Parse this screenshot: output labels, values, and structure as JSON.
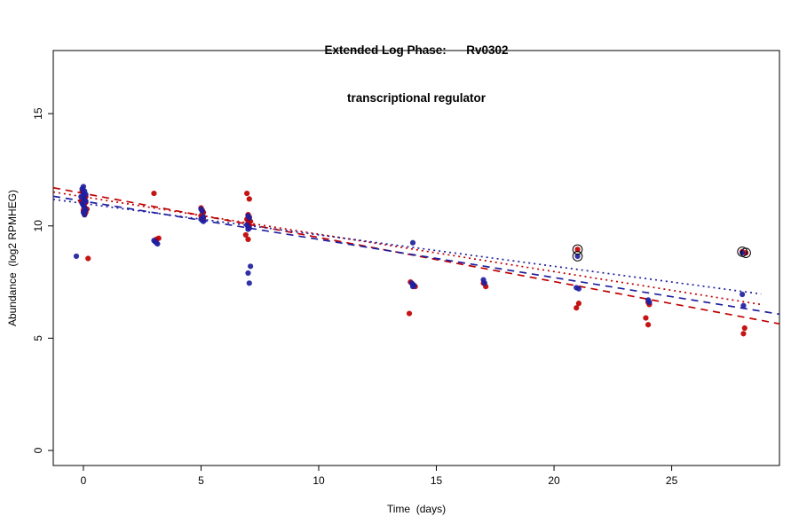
{
  "title": {
    "line1": "Extended Log Phase:      Rv0302",
    "line2": "transcriptional regulator"
  },
  "chart_data": {
    "type": "scatter",
    "title": "Extended Log Phase: Rv0302 transcriptional regulator",
    "xlabel": "Time  (days)",
    "ylabel": "Abundance  (log2 RPMHEG)",
    "xticks": [
      0,
      5,
      10,
      15,
      20,
      25
    ],
    "yticks": [
      0,
      5,
      10,
      15
    ],
    "xlim": [
      -1.28,
      29.58
    ],
    "ylim": [
      -0.67,
      17.81
    ],
    "grid": false,
    "legend": "none",
    "colors": {
      "red": "#c00000",
      "blue": "#1f1fa0",
      "ring": "#000000"
    },
    "series": [
      {
        "name": "red-points",
        "color": "#c00000",
        "points": [
          [
            -0.05,
            11.55
          ],
          [
            0,
            11.45
          ],
          [
            0.1,
            11.3
          ],
          [
            0.05,
            11.2
          ],
          [
            -0.1,
            11.1
          ],
          [
            0.1,
            11.05
          ],
          [
            0,
            10.95
          ],
          [
            0.05,
            10.85
          ],
          [
            0.15,
            10.75
          ],
          [
            0,
            10.7
          ],
          [
            0.1,
            10.6
          ],
          [
            0.05,
            10.5
          ],
          [
            0.2,
            8.55
          ],
          [
            3,
            11.45
          ],
          [
            3.2,
            9.45
          ],
          [
            3.1,
            9.4
          ],
          [
            5,
            10.8
          ],
          [
            5.05,
            10.7
          ],
          [
            5.1,
            10.6
          ],
          [
            5,
            10.45
          ],
          [
            5.05,
            10.35
          ],
          [
            5.1,
            10.3
          ],
          [
            6.95,
            11.45
          ],
          [
            7.05,
            11.2
          ],
          [
            7,
            10.5
          ],
          [
            7.05,
            10.4
          ],
          [
            6.95,
            10.3
          ],
          [
            7,
            10.25
          ],
          [
            7.1,
            10.2
          ],
          [
            7,
            10.1
          ],
          [
            7.05,
            10.0
          ],
          [
            6.9,
            9.6
          ],
          [
            7,
            9.4
          ],
          [
            13.9,
            7.5
          ],
          [
            14,
            7.4
          ],
          [
            14.1,
            7.3
          ],
          [
            13.85,
            6.1
          ],
          [
            17,
            7.45
          ],
          [
            17.1,
            7.3
          ],
          [
            21,
            8.95
          ],
          [
            21.05,
            6.55
          ],
          [
            20.95,
            6.35
          ],
          [
            24,
            6.6
          ],
          [
            24.05,
            6.5
          ],
          [
            23.9,
            5.9
          ],
          [
            24,
            5.6
          ],
          [
            28,
            8.85
          ],
          [
            28.15,
            8.8
          ],
          [
            28.1,
            5.45
          ],
          [
            28.05,
            5.2
          ]
        ]
      },
      {
        "name": "blue-points",
        "color": "#1f1fa0",
        "points": [
          [
            0,
            11.75
          ],
          [
            -0.05,
            11.65
          ],
          [
            0.05,
            11.55
          ],
          [
            0,
            11.45
          ],
          [
            0.1,
            11.4
          ],
          [
            -0.1,
            11.3
          ],
          [
            0,
            11.25
          ],
          [
            0.05,
            11.15
          ],
          [
            0.1,
            11.1
          ],
          [
            -0.05,
            11.0
          ],
          [
            0,
            10.9
          ],
          [
            0.05,
            10.8
          ],
          [
            0.1,
            10.7
          ],
          [
            0,
            10.6
          ],
          [
            0.05,
            10.5
          ],
          [
            -0.3,
            8.65
          ],
          [
            3,
            9.35
          ],
          [
            3.05,
            9.3
          ],
          [
            3.1,
            9.25
          ],
          [
            3.15,
            9.2
          ],
          [
            5,
            10.75
          ],
          [
            5.05,
            10.65
          ],
          [
            5.1,
            10.4
          ],
          [
            5,
            10.3
          ],
          [
            5.05,
            10.25
          ],
          [
            5.1,
            10.2
          ],
          [
            7,
            10.45
          ],
          [
            7.05,
            10.35
          ],
          [
            6.95,
            10.05
          ],
          [
            7,
            9.95
          ],
          [
            7.05,
            9.9
          ],
          [
            7,
            9.85
          ],
          [
            7.1,
            8.2
          ],
          [
            7,
            7.9
          ],
          [
            7.05,
            7.45
          ],
          [
            14,
            9.25
          ],
          [
            13.95,
            7.45
          ],
          [
            14.05,
            7.35
          ],
          [
            14,
            7.3
          ],
          [
            17,
            7.6
          ],
          [
            17.05,
            7.45
          ],
          [
            21,
            8.65
          ],
          [
            20.95,
            7.25
          ],
          [
            21.05,
            7.2
          ],
          [
            24,
            6.7
          ],
          [
            24.05,
            6.6
          ],
          [
            28,
            8.8
          ],
          [
            28,
            6.95
          ],
          [
            28.05,
            6.45
          ]
        ]
      }
    ],
    "highlighted_points": [
      [
        21,
        8.95
      ],
      [
        21,
        8.65
      ],
      [
        28,
        8.85
      ],
      [
        28.15,
        8.8
      ]
    ],
    "trend_lines": [
      {
        "name": "red-dashed",
        "color": "#c00000",
        "style": "dashed",
        "x": [
          -1.28,
          29.58
        ],
        "y": [
          11.7,
          5.64
        ]
      },
      {
        "name": "red-dotted",
        "color": "#c00000",
        "style": "dotted",
        "x": [
          -1.28,
          28.8
        ],
        "y": [
          11.51,
          6.5
        ]
      },
      {
        "name": "blue-dashed",
        "color": "#1f1fa0",
        "style": "dashed",
        "x": [
          -1.28,
          29.58
        ],
        "y": [
          11.32,
          6.07
        ]
      },
      {
        "name": "blue-dotted",
        "color": "#1f1fa0",
        "style": "dotted",
        "x": [
          -1.28,
          28.8
        ],
        "y": [
          11.18,
          6.97
        ]
      }
    ]
  }
}
